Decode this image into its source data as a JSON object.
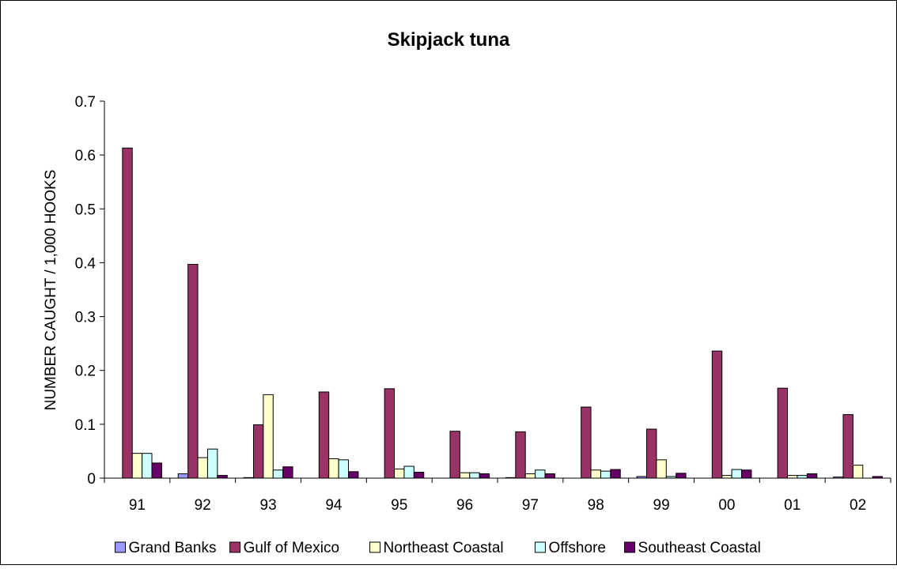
{
  "chart_data": {
    "type": "bar",
    "title": "Skipjack tuna",
    "xlabel": "",
    "ylabel": "NUMBER CAUGHT / 1,000 HOOKS",
    "ylim": [
      0,
      0.7
    ],
    "yticks": [
      "0",
      "0.1",
      "0.2",
      "0.3",
      "0.4",
      "0.5",
      "0.6",
      "0.7"
    ],
    "categories": [
      "91",
      "92",
      "93",
      "94",
      "95",
      "96",
      "97",
      "98",
      "99",
      "00",
      "01",
      "02"
    ],
    "grid": false,
    "legend": "bottom",
    "series": [
      {
        "name": "Grand Banks",
        "color": "#9999ff",
        "values": [
          0,
          0.008,
          0.001,
          0,
          0,
          0,
          0.001,
          0,
          0.003,
          0,
          0,
          0.002
        ]
      },
      {
        "name": "Gulf of Mexico",
        "color": "#993366",
        "values": [
          0.613,
          0.397,
          0.099,
          0.16,
          0.166,
          0.087,
          0.086,
          0.132,
          0.091,
          0.236,
          0.167,
          0.118
        ]
      },
      {
        "name": "Northeast Coastal",
        "color": "#ffffcc",
        "values": [
          0.046,
          0.038,
          0.155,
          0.036,
          0.017,
          0.01,
          0.008,
          0.015,
          0.034,
          0.005,
          0.005,
          0.024
        ]
      },
      {
        "name": "Offshore",
        "color": "#ccffff",
        "values": [
          0.046,
          0.054,
          0.015,
          0.034,
          0.022,
          0.01,
          0.015,
          0.013,
          0.003,
          0.016,
          0.005,
          0
        ]
      },
      {
        "name": "Southeast Coastal",
        "color": "#660066",
        "values": [
          0.028,
          0.005,
          0.021,
          0.012,
          0.011,
          0.008,
          0.008,
          0.016,
          0.009,
          0.015,
          0.008,
          0.003
        ]
      }
    ]
  }
}
